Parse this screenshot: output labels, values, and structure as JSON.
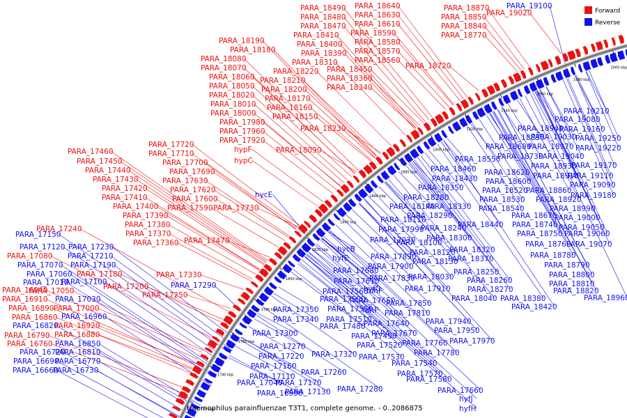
{
  "caption": "Haemophilus parainfluenzae T3T1, complete genome. - 0..2086875",
  "legend": {
    "forward": "Forward",
    "reverse": "Reverse"
  },
  "colors": {
    "forward": "#ee1111",
    "reverse": "#1111ee",
    "backbone": "#777777"
  },
  "ticks": [
    "1720 kbp",
    "1740 kbp",
    "1760 kbp",
    "1780 kbp",
    "1800 kbp",
    "1820 kbp",
    "1840 kbp",
    "1860 kbp",
    "1880 kbp",
    "1900 kbp",
    "1920 kbp",
    "1940 kbp",
    "1960 kbp",
    "1980 kbp",
    "2000 kbp"
  ],
  "forward_labels": [
    "PARA_18490",
    "PARA_18480",
    "PARA_18470",
    "PARA_18410",
    "PARA_18400",
    "PARA_18390",
    "PARA_18310",
    "PARA_18220",
    "PARA_18210",
    "PARA_18200",
    "PARA_18170",
    "PARA_18160",
    "PARA_18150",
    "PARA_18230",
    "PARA_18090",
    "PARA_18640",
    "PARA_18630",
    "PARA_18610",
    "PARA_18590",
    "PARA_18580",
    "PARA_18570",
    "PARA_18560",
    "PARA_18450",
    "PARA_18360",
    "PARA_18340",
    "PARA_18720",
    "PARA_18870",
    "PARA_18850",
    "PARA_18840",
    "PARA_18770",
    "PARA_19020",
    "PARA_18190",
    "PARA_18180",
    "PARA_18080",
    "PARA_18070",
    "PARA_18060",
    "PARA_18050",
    "PARA_18020",
    "PARA_18010",
    "PARA_18000",
    "PARA_17980",
    "PARA_17960",
    "PARA_17920",
    "hypF",
    "hypC",
    "PARA_17720",
    "PARA_17710",
    "PARA_17700",
    "PARA_17690",
    "PARA_17630",
    "PARA_17620",
    "PARA_17600",
    "PARA_17590",
    "PARA_17730",
    "PARA_17460",
    "PARA_17450",
    "PARA_17440",
    "PARA_17430",
    "PARA_17420",
    "PARA_17410",
    "PARA_17400",
    "PARA_17390",
    "PARA_17380",
    "PARA_17370",
    "PARA_17360",
    "PARA_17470",
    "PARA_17240",
    "PARA_17080",
    "PARA_17180",
    "PARA_17200",
    "PARA_17050",
    "PARA_17000",
    "PARA_16920",
    "PARA_16880",
    "PARA_16940",
    "PARA_16910",
    "PARA_16890",
    "PARA_16860",
    "PARA_16790",
    "PARA_16760",
    "PARA_17330",
    "PARA_17250"
  ],
  "reverse_labels": [
    "PARA_19100",
    "PARA_19210",
    "PARA_19080",
    "PARA_19160",
    "PARA_19250",
    "PARA_19220",
    "PARA_18940",
    "PARA_19030",
    "PARA_18830",
    "PARA_18970",
    "PARA_19040",
    "PARA_18680",
    "PARA_18730",
    "PARA_18550",
    "PARA_18930",
    "PARA_19170",
    "PARA_18460",
    "PARA_18620",
    "PARA_18910",
    "PARA_19110",
    "PARA_18430",
    "PARA_18600",
    "PARA_19090",
    "PARA_18350",
    "PARA_18520",
    "PARA_18860",
    "PARA_19180",
    "PARA_18280",
    "PARA_18530",
    "PARA_18920",
    "PARA_18140",
    "PARA_18330",
    "PARA_18540",
    "PARA_18990",
    "PARA_18290",
    "PARA_18670",
    "PARA_19000",
    "PARA_18110",
    "PARA_18440",
    "PARA_18740",
    "PARA_19050",
    "PARA_17990",
    "PARA_18240",
    "PARA_18750",
    "PARA_19060",
    "PARA_17930",
    "PARA_18100",
    "PARA_18300",
    "PARA_18760",
    "PARA_19070",
    "hycE",
    "hycB",
    "PARA_18120",
    "PARA_18320",
    "PARA_18780",
    "hyfE",
    "PARA_17890",
    "PARA_18130",
    "PARA_18370",
    "PARA_18790",
    "PARA_17680",
    "PARA_17900",
    "PARA_18800",
    "PARA_17610",
    "PARA_18030",
    "PARA_18250",
    "PARA_18810",
    "PARA_17830",
    "PARA_18260",
    "PARA_18820",
    "hyfC",
    "PARA_17910",
    "PARA_18270",
    "PARA_18960",
    "PARA_17560",
    "fdhF",
    "PARA_18040",
    "PARA_18380",
    "PARA_17500",
    "PARA_17650",
    "PARA_17850",
    "PARA_18420",
    "PARA_17350",
    "PARA_17550",
    "fdhF",
    "PARA_17810",
    "PARA_17340",
    "PARA_17510",
    "PARA_17640",
    "PARA_17940",
    "PARA_17480",
    "PARA_17670",
    "PARA_17950",
    "PARA_17300",
    "PARA_17490",
    "PARA_17760",
    "PARA_17970",
    "PARA_17270",
    "PARA_17520",
    "PARA_17780",
    "PARA_17220",
    "PARA_17320",
    "PARA_17530",
    "PARA_17160",
    "PARA_17540",
    "PARA_17110",
    "PARA_17260",
    "PARA_17570",
    "PARA_17040",
    "PARA_17170",
    "PARA_17580",
    "PARA_16990",
    "PARA_17130",
    "PARA_17280",
    "PARA_17660",
    "hyfJ",
    "hyfH",
    "PARA_17150",
    "PARA_17230",
    "PARA_17120",
    "PARA_17210",
    "PARA_17070",
    "PARA_17190",
    "PARA_17060",
    "PARA_17010",
    "PARA_17100",
    "PARA_17290",
    "PARA_17030",
    "PARA_16960",
    "PARA_16820",
    "PARA_16850",
    "PARA_16720",
    "PARA_16810",
    "PARA_16690",
    "PARA_16770",
    "PARA_16660",
    "PARA_16730"
  ]
}
